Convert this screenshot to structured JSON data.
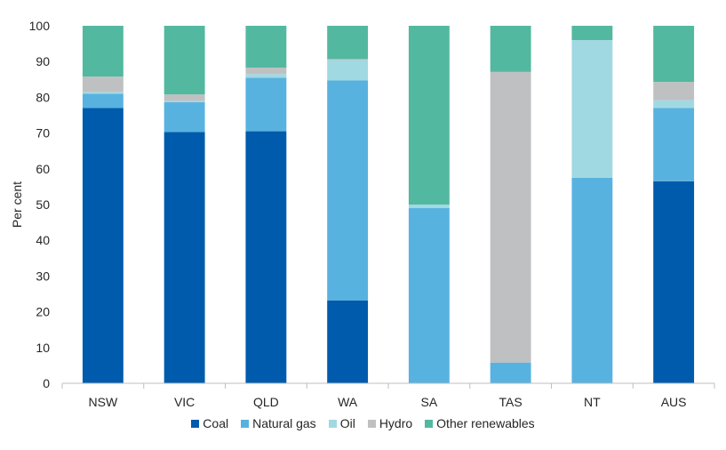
{
  "chart_data": {
    "type": "bar",
    "stacked": true,
    "ylabel": "Per cent",
    "ylim": [
      0,
      100
    ],
    "yticks": [
      0,
      10,
      20,
      30,
      40,
      50,
      60,
      70,
      80,
      90,
      100
    ],
    "grid": false,
    "legend": "bottom",
    "categories": [
      "NSW",
      "VIC",
      "QLD",
      "WA",
      "SA",
      "TAS",
      "NT",
      "AUS"
    ],
    "series": [
      {
        "name": "Coal",
        "color": "#005BAC",
        "values": [
          77,
          70.3,
          70.5,
          23.2,
          0,
          0,
          0,
          56.5
        ]
      },
      {
        "name": "Natural gas",
        "color": "#58B2E0",
        "values": [
          4,
          8.3,
          15,
          61.5,
          49,
          5.8,
          57.5,
          20.5
        ]
      },
      {
        "name": "Oil",
        "color": "#A1D9E2",
        "values": [
          0.5,
          0.4,
          1,
          5.7,
          1,
          0,
          38.5,
          2.2
        ]
      },
      {
        "name": "Hydro",
        "color": "#BFC0C2",
        "values": [
          4.3,
          1.8,
          1.8,
          0.3,
          0,
          81.3,
          0,
          5.1
        ]
      },
      {
        "name": "Other renewables",
        "color": "#53B8A0",
        "values": [
          14.2,
          19.2,
          11.7,
          9.3,
          50,
          12.9,
          4,
          15.7
        ]
      }
    ]
  }
}
